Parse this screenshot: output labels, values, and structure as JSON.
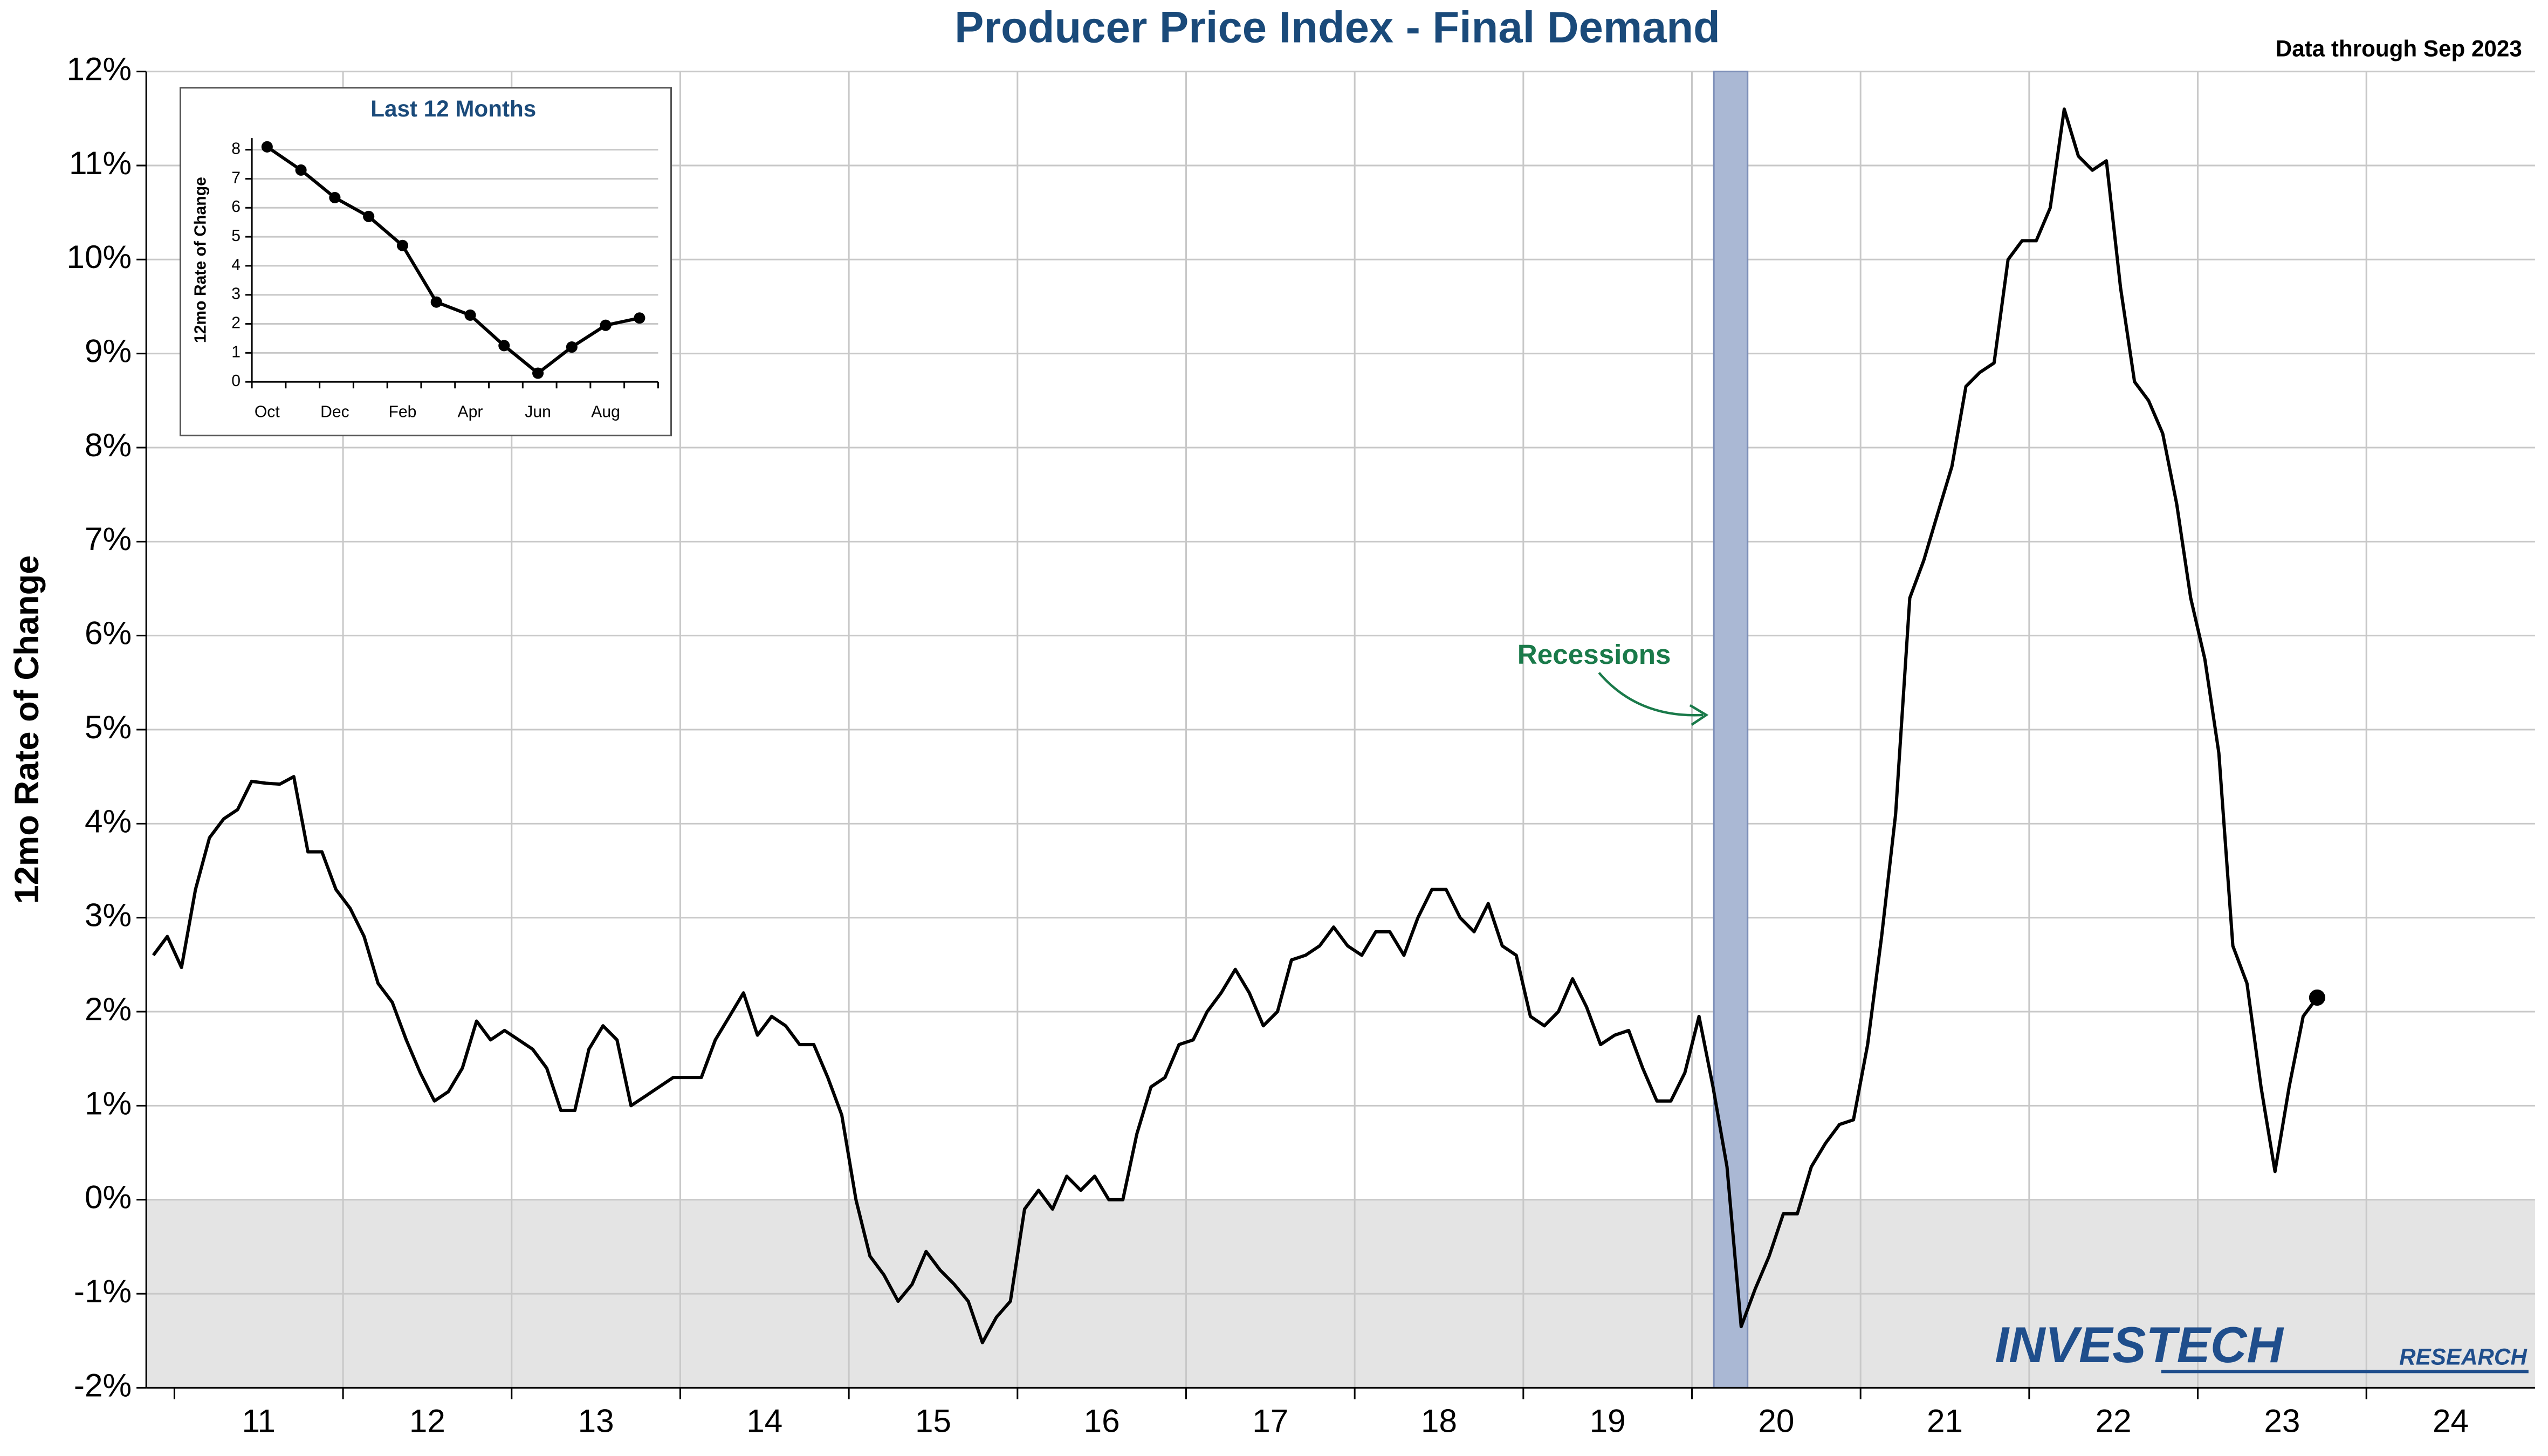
{
  "chart_data": [
    {
      "type": "line",
      "title": "Producer Price Index - Final Demand",
      "subtitle": "Data through Sep 2023",
      "y_label": "12mo Rate of Change",
      "annotation": "Recessions",
      "logo": [
        "INVESTECH",
        "RESEARCH"
      ],
      "xlim": [
        10.833,
        25
      ],
      "ylim": [
        -2,
        12
      ],
      "yticks": [
        {
          "value": -2,
          "label": "-2%"
        },
        {
          "value": -1,
          "label": "-1%"
        },
        {
          "value": 0,
          "label": "0%"
        },
        {
          "value": 1,
          "label": "1%"
        },
        {
          "value": 2,
          "label": "2%"
        },
        {
          "value": 3,
          "label": "3%"
        },
        {
          "value": 4,
          "label": "4%"
        },
        {
          "value": 5,
          "label": "5%"
        },
        {
          "value": 6,
          "label": "6%"
        },
        {
          "value": 7,
          "label": "7%"
        },
        {
          "value": 8,
          "label": "8%"
        },
        {
          "value": 9,
          "label": "9%"
        },
        {
          "value": 10,
          "label": "10%"
        },
        {
          "value": 11,
          "label": "11%"
        },
        {
          "value": 12,
          "label": "12%"
        }
      ],
      "xticks": [
        {
          "value": 11.5,
          "label": "11"
        },
        {
          "value": 12.5,
          "label": "12"
        },
        {
          "value": 13.5,
          "label": "13"
        },
        {
          "value": 14.5,
          "label": "14"
        },
        {
          "value": 15.5,
          "label": "15"
        },
        {
          "value": 16.5,
          "label": "16"
        },
        {
          "value": 17.5,
          "label": "17"
        },
        {
          "value": 18.5,
          "label": "18"
        },
        {
          "value": 19.5,
          "label": "19"
        },
        {
          "value": 20.5,
          "label": "20"
        },
        {
          "value": 21.5,
          "label": "21"
        },
        {
          "value": 22.5,
          "label": "22"
        },
        {
          "value": 23.5,
          "label": "23"
        },
        {
          "value": 24.5,
          "label": "24"
        }
      ],
      "xgrid": [
        11,
        12,
        13,
        14,
        15,
        16,
        17,
        18,
        19,
        20,
        21,
        22,
        23,
        24
      ],
      "grid": true,
      "recessions": [
        [
          20.13,
          20.33
        ]
      ],
      "x": [
        10.875,
        10.958,
        11.042,
        11.125,
        11.208,
        11.292,
        11.375,
        11.458,
        11.542,
        11.625,
        11.708,
        11.792,
        11.875,
        11.958,
        12.042,
        12.125,
        12.208,
        12.292,
        12.375,
        12.458,
        12.542,
        12.625,
        12.708,
        12.792,
        12.875,
        12.958,
        13.042,
        13.125,
        13.208,
        13.292,
        13.375,
        13.458,
        13.542,
        13.625,
        13.708,
        13.792,
        13.875,
        13.958,
        14.042,
        14.125,
        14.208,
        14.292,
        14.375,
        14.458,
        14.542,
        14.625,
        14.708,
        14.792,
        14.875,
        14.958,
        15.042,
        15.125,
        15.208,
        15.292,
        15.375,
        15.458,
        15.542,
        15.625,
        15.708,
        15.792,
        15.875,
        15.958,
        16.042,
        16.125,
        16.208,
        16.292,
        16.375,
        16.458,
        16.542,
        16.625,
        16.708,
        16.792,
        16.875,
        16.958,
        17.042,
        17.125,
        17.208,
        17.292,
        17.375,
        17.458,
        17.542,
        17.625,
        17.708,
        17.792,
        17.875,
        17.958,
        18.042,
        18.125,
        18.208,
        18.292,
        18.375,
        18.458,
        18.542,
        18.625,
        18.708,
        18.792,
        18.875,
        18.958,
        19.042,
        19.125,
        19.208,
        19.292,
        19.375,
        19.458,
        19.542,
        19.625,
        19.708,
        19.792,
        19.875,
        19.958,
        20.042,
        20.125,
        20.208,
        20.292,
        20.375,
        20.458,
        20.542,
        20.625,
        20.708,
        20.792,
        20.875,
        20.958,
        21.042,
        21.125,
        21.208,
        21.292,
        21.375,
        21.458,
        21.542,
        21.625,
        21.708,
        21.792,
        21.875,
        21.958,
        22.042,
        22.125,
        22.208,
        22.292,
        22.375,
        22.458,
        22.542,
        22.625,
        22.708,
        22.792,
        22.875,
        22.958,
        23.042,
        23.125,
        23.208,
        23.292,
        23.375,
        23.458,
        23.542,
        23.625,
        23.708
      ],
      "series": [
        {
          "color": "#000000",
          "values": [
            2.6,
            2.8,
            2.47,
            3.3,
            3.85,
            4.05,
            4.15,
            4.45,
            4.43,
            4.42,
            4.5,
            3.7,
            3.7,
            3.3,
            3.1,
            2.8,
            2.3,
            2.1,
            1.7,
            1.35,
            1.05,
            1.15,
            1.4,
            1.9,
            1.7,
            1.8,
            1.7,
            1.6,
            1.4,
            0.95,
            0.95,
            1.6,
            1.85,
            1.7,
            1.0,
            1.1,
            1.2,
            1.3,
            1.3,
            1.3,
            1.7,
            1.95,
            2.2,
            1.75,
            1.95,
            1.85,
            1.65,
            1.65,
            1.3,
            0.9,
            0.0,
            -0.6,
            -0.8,
            -1.08,
            -0.9,
            -0.55,
            -0.75,
            -0.9,
            -1.08,
            -1.52,
            -1.25,
            -1.08,
            -0.1,
            0.1,
            -0.1,
            0.25,
            0.1,
            0.25,
            0.0,
            0.0,
            0.7,
            1.2,
            1.3,
            1.65,
            1.7,
            2.0,
            2.2,
            2.45,
            2.2,
            1.85,
            2.0,
            2.55,
            2.6,
            2.7,
            2.9,
            2.7,
            2.6,
            2.85,
            2.85,
            2.6,
            3.0,
            3.3,
            3.3,
            3.0,
            2.85,
            3.15,
            2.7,
            2.6,
            1.95,
            1.85,
            2.0,
            2.35,
            2.05,
            1.65,
            1.75,
            1.8,
            1.4,
            1.05,
            1.05,
            1.35,
            1.95,
            1.2,
            0.35,
            -1.35,
            -0.95,
            -0.6,
            -0.15,
            -0.15,
            0.35,
            0.6,
            0.8,
            0.85,
            1.65,
            2.8,
            4.1,
            6.4,
            6.8,
            7.3,
            7.8,
            8.65,
            8.8,
            8.9,
            10.0,
            10.2,
            10.2,
            10.55,
            11.6,
            11.1,
            10.95,
            11.05,
            9.7,
            8.7,
            8.5,
            8.15,
            7.4,
            6.4,
            5.75,
            4.75,
            2.7,
            2.3,
            1.2,
            0.3,
            1.2,
            1.95,
            2.15
          ]
        }
      ]
    },
    {
      "type": "line",
      "title": "Last 12 Months",
      "y_label": "12mo Rate of Change",
      "categories": [
        "Oct",
        null,
        "Dec",
        null,
        "Feb",
        null,
        "Apr",
        null,
        "Jun",
        null,
        "Aug",
        null
      ],
      "ylim": [
        0,
        8.4
      ],
      "yticks": [
        0,
        1,
        2,
        3,
        4,
        5,
        6,
        7,
        8
      ],
      "grid": true,
      "series": [
        {
          "color": "#000000",
          "values": [
            8.1,
            7.3,
            6.35,
            5.7,
            4.7,
            2.75,
            2.3,
            1.25,
            0.3,
            1.2,
            1.95,
            2.2
          ]
        }
      ]
    }
  ]
}
